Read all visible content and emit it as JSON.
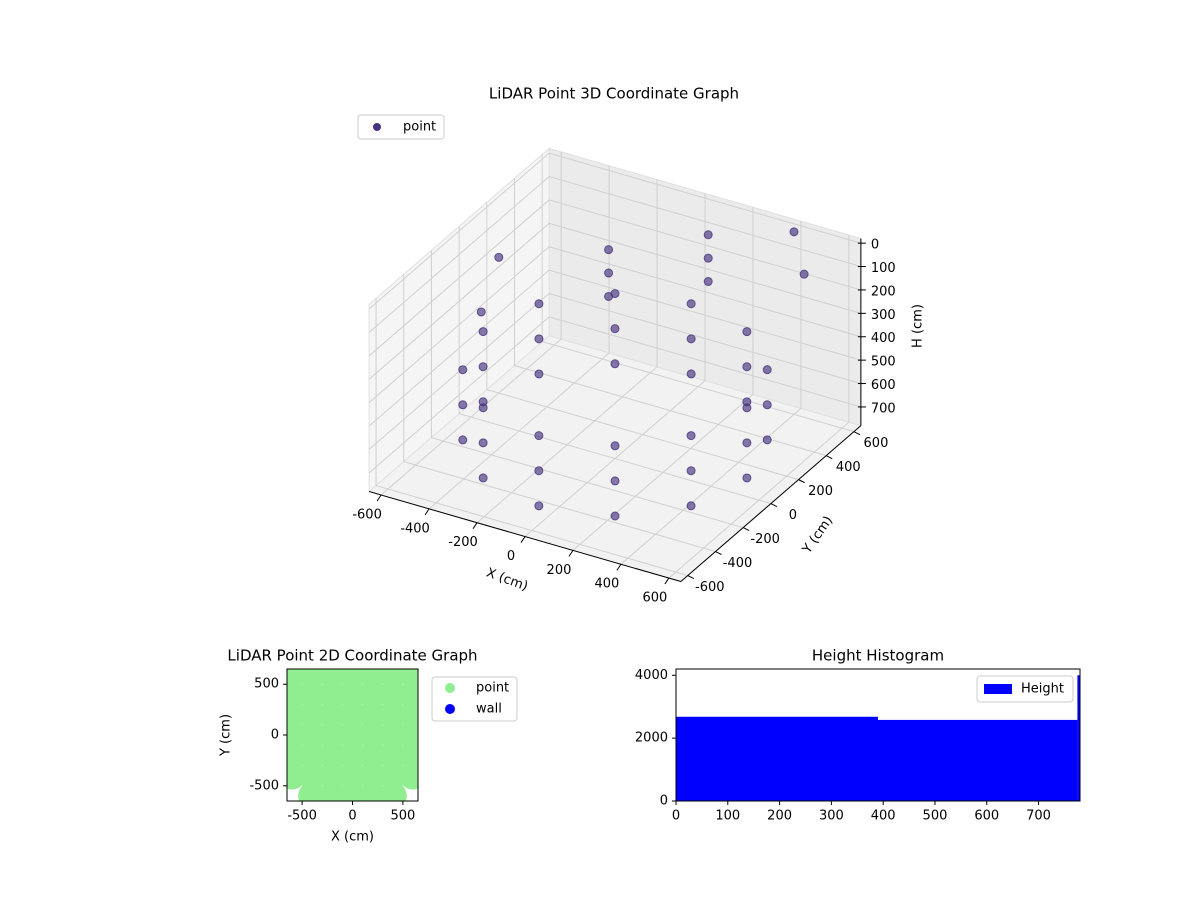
{
  "chart_data": [
    {
      "type": "scatter3d",
      "title": "LiDAR Point 3D Coordinate Graph",
      "x_label": "X (cm)",
      "y_label": "Y (cm)",
      "z_label": "H (cm)",
      "xlim": [
        -650,
        650
      ],
      "ylim": [
        -650,
        650
      ],
      "zlim": [
        780,
        -20
      ],
      "xticks": [
        -600,
        -400,
        -200,
        0,
        200,
        400,
        600
      ],
      "yticks": [
        -600,
        -400,
        -200,
        0,
        200,
        400,
        600
      ],
      "zticks": [
        0,
        100,
        200,
        300,
        400,
        500,
        600,
        700
      ],
      "grid": true,
      "legend": "upper left",
      "series": [
        {
          "name": "point",
          "color": "#46327e",
          "x": [
            550,
            476,
            275,
            0,
            -275,
            -476,
            -550,
            -476,
            -275,
            0,
            275,
            476,
            550,
            476,
            275,
            0,
            -275,
            -476,
            -550,
            -476,
            -275,
            0,
            275,
            476,
            550,
            476,
            275,
            0,
            -275,
            -476,
            -550,
            -476,
            -275,
            0,
            275,
            476,
            -200,
            -200,
            -200,
            100,
            100,
            100,
            400,
            500,
            -600,
            -500
          ],
          "y": [
            0,
            275,
            476,
            550,
            476,
            275,
            0,
            -275,
            -476,
            -550,
            -476,
            -275,
            0,
            275,
            476,
            550,
            476,
            275,
            0,
            -275,
            -476,
            -550,
            -476,
            -275,
            0,
            275,
            476,
            550,
            476,
            275,
            0,
            -275,
            -476,
            -550,
            -476,
            -275,
            300,
            300,
            300,
            500,
            500,
            500,
            600,
            500,
            200,
            -100
          ],
          "h": [
            400,
            400,
            400,
            400,
            400,
            400,
            400,
            400,
            400,
            400,
            400,
            400,
            550,
            550,
            550,
            550,
            550,
            550,
            550,
            550,
            550,
            550,
            550,
            550,
            700,
            700,
            700,
            700,
            700,
            700,
            700,
            700,
            700,
            700,
            700,
            700,
            100,
            200,
            300,
            50,
            150,
            250,
            0,
            100,
            200,
            250
          ]
        }
      ]
    },
    {
      "type": "scatter",
      "title": "LiDAR Point 2D Coordinate Graph",
      "x_label": "X (cm)",
      "y_label": "Y (cm)",
      "xlim": [
        -650,
        650
      ],
      "ylim": [
        -650,
        650
      ],
      "xticks": [
        -500,
        0,
        500
      ],
      "yticks": [
        -500,
        0,
        500
      ],
      "legend": "outside right",
      "series": [
        {
          "name": "point",
          "color": "#90ee90",
          "x": [
            -400,
            -200,
            0,
            200,
            400,
            -600,
            -400,
            -200,
            0,
            200,
            400,
            600,
            -600,
            -400,
            -200,
            0,
            200,
            400,
            600,
            -600,
            -400,
            -200,
            0,
            200,
            400,
            600,
            -600,
            -400,
            -200,
            0,
            200,
            400,
            600,
            -600,
            -400,
            -200,
            0,
            200,
            400,
            600,
            -600,
            -400,
            -200,
            0,
            200,
            400,
            600
          ],
          "y": [
            -600,
            -600,
            -600,
            -600,
            -600,
            -400,
            -400,
            -400,
            -400,
            -400,
            -400,
            -400,
            -200,
            -200,
            -200,
            -200,
            -200,
            -200,
            -200,
            0,
            0,
            0,
            0,
            0,
            0,
            0,
            200,
            200,
            200,
            200,
            200,
            200,
            200,
            400,
            400,
            400,
            400,
            400,
            400,
            400,
            600,
            600,
            600,
            600,
            600,
            600,
            600
          ]
        },
        {
          "name": "wall",
          "color": "#0000ff",
          "x": [],
          "y": []
        }
      ]
    },
    {
      "type": "histogram",
      "title": "Height Histogram",
      "name": "Height",
      "color": "#0000ff",
      "legend": "upper right",
      "bins": [
        0,
        390,
        775,
        780
      ],
      "counts": [
        2680,
        2580,
        4000
      ],
      "xlim": [
        0,
        780
      ],
      "ylim": [
        0,
        4200
      ],
      "xticks": [
        0,
        100,
        200,
        300,
        400,
        500,
        600,
        700
      ],
      "yticks": [
        0,
        2000,
        4000
      ]
    }
  ]
}
